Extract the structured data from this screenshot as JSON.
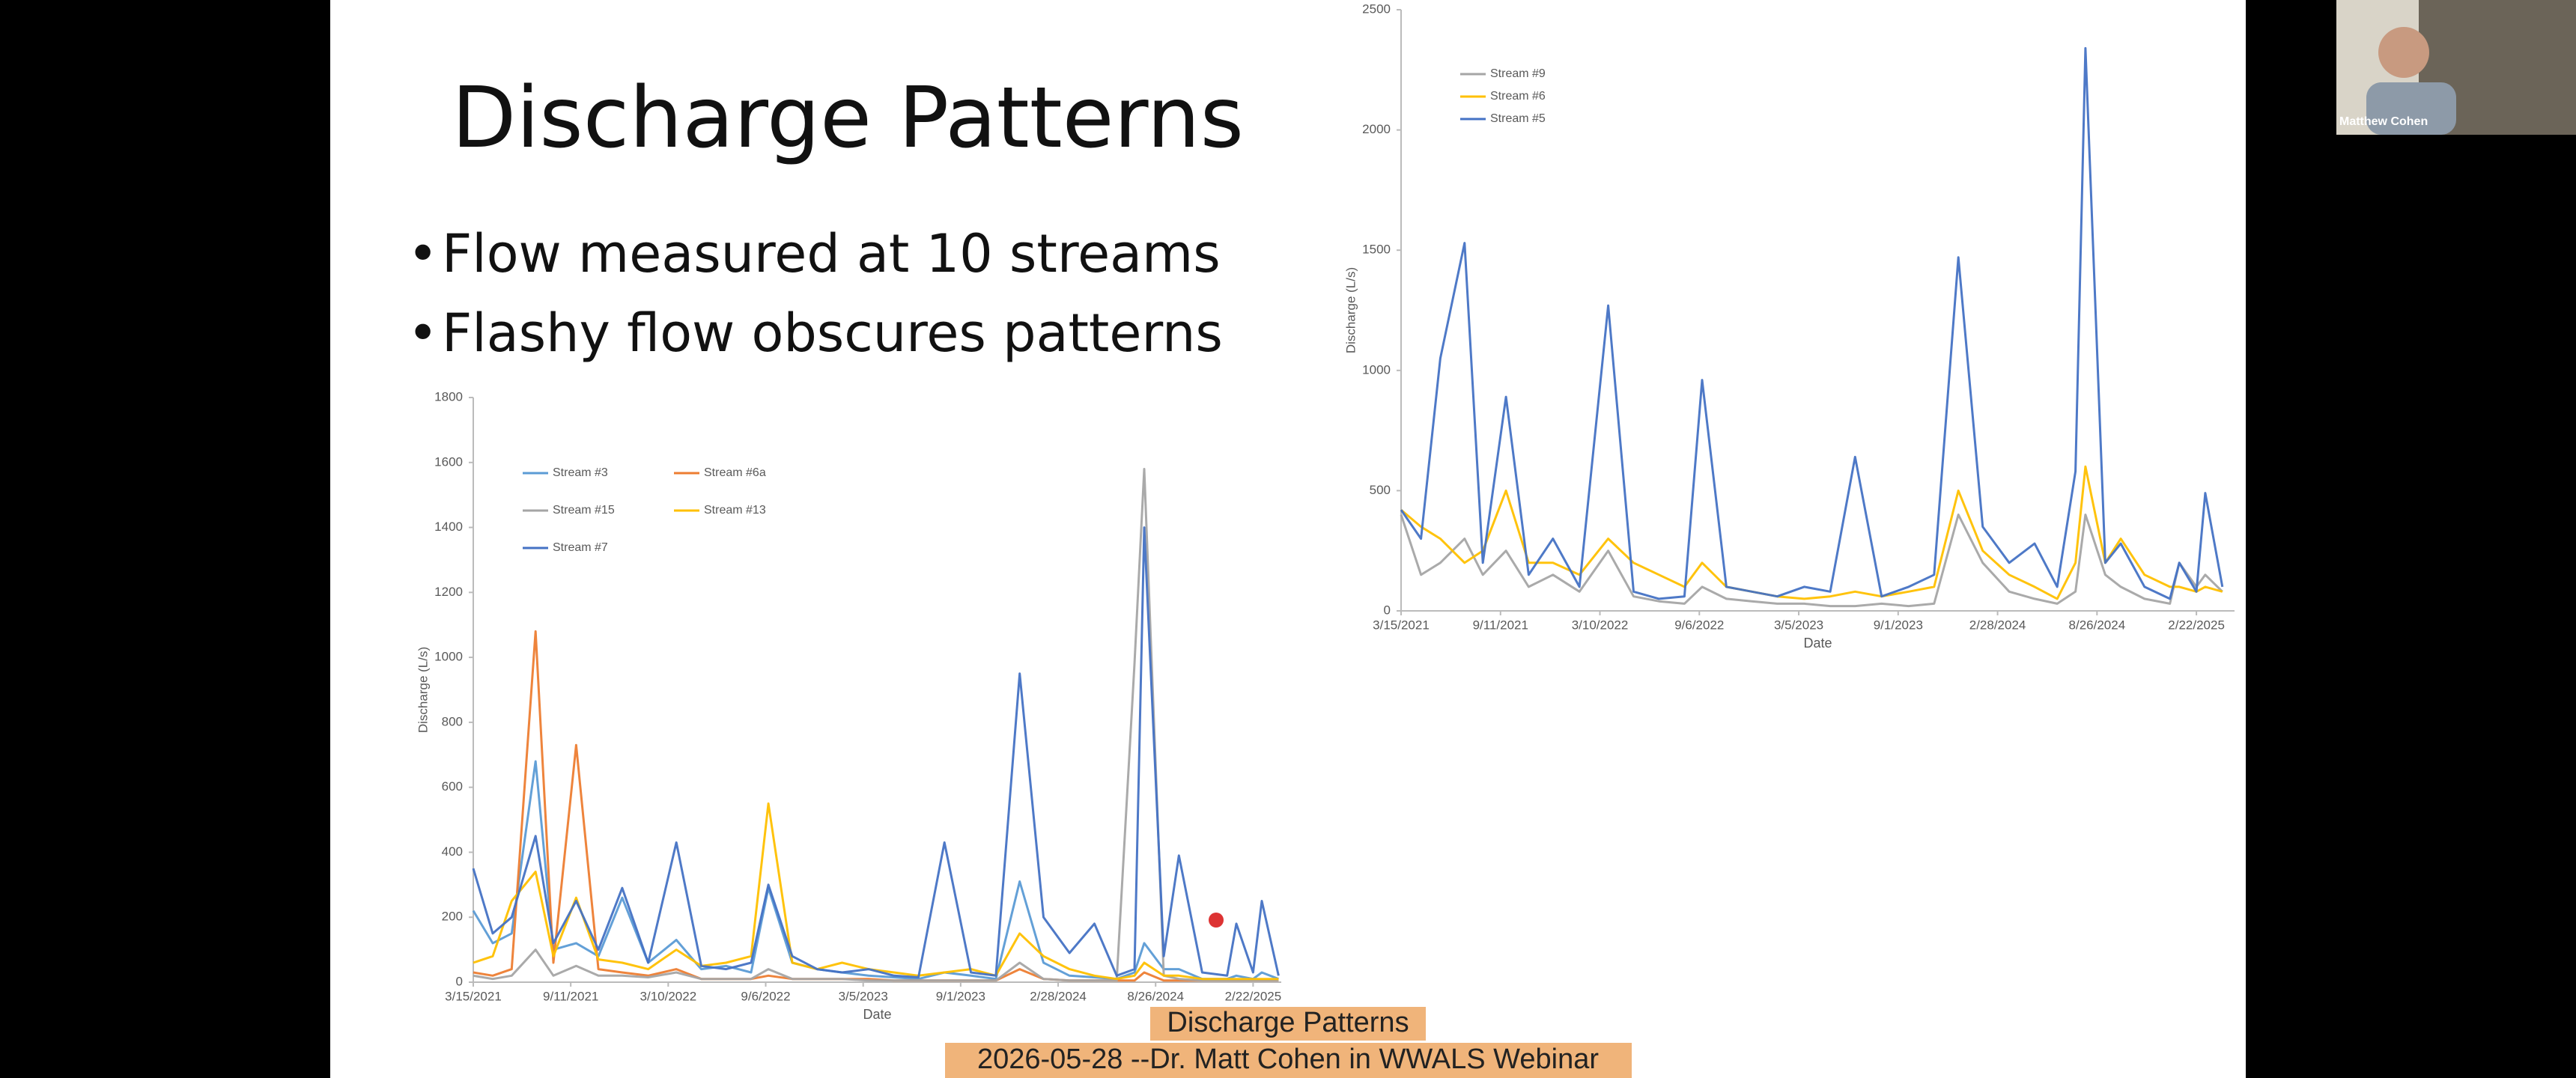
{
  "slide": {
    "title": "Discharge Patterns",
    "bullets": [
      "Flow measured at 10 streams",
      "Flashy flow obscures patterns"
    ]
  },
  "video": {
    "participant": "Matthew Cohen"
  },
  "captions": [
    "Discharge Patterns",
    "2026-05-28 --Dr. Matt Cohen in WWALS Webinar"
  ],
  "chart_data": [
    {
      "type": "line",
      "x_label": "Date",
      "y_label": "Discharge (L/s)",
      "x": [
        "3/15/2021",
        "4/20/2021",
        "5/25/2021",
        "7/8/2021",
        "8/10/2021",
        "9/21/2021",
        "11/1/2021",
        "12/15/2021",
        "2/1/2022",
        "3/25/2022",
        "5/10/2022",
        "6/25/2022",
        "8/10/2022",
        "9/11/2022",
        "10/25/2022",
        "12/10/2022",
        "1/25/2023",
        "3/15/2023",
        "5/1/2023",
        "6/15/2023",
        "8/2/2023",
        "9/20/2023",
        "11/5/2023",
        "12/19/2023",
        "2/1/2024",
        "3/20/2024",
        "5/5/2024",
        "6/15/2024",
        "7/18/2024",
        "8/5/2024",
        "9/10/2024",
        "10/8/2024",
        "11/20/2024",
        "1/5/2025",
        "1/22/2025",
        "2/22/2025",
        "3/10/2025",
        "4/10/2025"
      ],
      "xlim": [
        "3/15/2021",
        "4/15/2025"
      ],
      "xticks": [
        "3/15/2021",
        "9/11/2021",
        "3/10/2022",
        "9/6/2022",
        "3/5/2023",
        "9/1/2023",
        "2/28/2024",
        "8/26/2024",
        "2/22/2025"
      ],
      "ylim": [
        0,
        1800
      ],
      "yticks": [
        0,
        200,
        400,
        600,
        800,
        1000,
        1200,
        1400,
        1600,
        1800
      ],
      "series": [
        {
          "name": "Stream #3",
          "color": "#5b9bd5",
          "values": [
            220,
            120,
            150,
            680,
            100,
            120,
            80,
            260,
            60,
            130,
            40,
            50,
            30,
            290,
            60,
            40,
            30,
            20,
            15,
            10,
            30,
            20,
            10,
            310,
            60,
            20,
            15,
            10,
            30,
            120,
            40,
            40,
            10,
            10,
            20,
            10,
            30,
            10
          ]
        },
        {
          "name": "Stream #6a",
          "color": "#ed7d31",
          "values": [
            30,
            20,
            40,
            1080,
            60,
            730,
            40,
            30,
            20,
            40,
            10,
            10,
            10,
            20,
            10,
            10,
            10,
            10,
            5,
            5,
            5,
            5,
            5,
            40,
            10,
            5,
            5,
            5,
            5,
            30,
            5,
            5,
            5,
            5,
            5,
            5,
            5,
            5
          ]
        },
        {
          "name": "Stream #15",
          "color": "#a5a5a5",
          "values": [
            20,
            10,
            20,
            100,
            20,
            50,
            20,
            20,
            15,
            30,
            10,
            10,
            10,
            40,
            10,
            10,
            10,
            5,
            5,
            5,
            5,
            5,
            5,
            60,
            10,
            5,
            5,
            5,
            980,
            1580,
            20,
            10,
            5,
            5,
            5,
            5,
            5,
            5
          ]
        },
        {
          "name": "Stream #13",
          "color": "#ffc000",
          "values": [
            60,
            80,
            250,
            340,
            80,
            260,
            70,
            60,
            40,
            100,
            50,
            60,
            80,
            550,
            60,
            40,
            60,
            40,
            30,
            20,
            30,
            40,
            20,
            150,
            80,
            40,
            20,
            10,
            20,
            60,
            20,
            20,
            10,
            10,
            10,
            10,
            10,
            10
          ]
        },
        {
          "name": "Stream #7",
          "color": "#4472c4",
          "values": [
            350,
            150,
            200,
            450,
            120,
            250,
            100,
            290,
            60,
            430,
            50,
            40,
            60,
            300,
            80,
            40,
            30,
            40,
            20,
            15,
            430,
            30,
            20,
            950,
            200,
            90,
            180,
            20,
            40,
            1400,
            80,
            390,
            30,
            20,
            180,
            30,
            250,
            20
          ]
        }
      ]
    },
    {
      "type": "line",
      "x_label": "Date",
      "y_label": "Discharge (L/s)",
      "x": [
        "3/15/2021",
        "4/20/2021",
        "5/25/2021",
        "7/8/2021",
        "8/10/2021",
        "9/21/2021",
        "11/1/2021",
        "12/15/2021",
        "2/1/2022",
        "3/25/2022",
        "5/10/2022",
        "6/25/2022",
        "8/10/2022",
        "9/11/2022",
        "10/25/2022",
        "12/10/2022",
        "1/25/2023",
        "3/15/2023",
        "5/1/2023",
        "6/15/2023",
        "8/2/2023",
        "9/20/2023",
        "11/5/2023",
        "12/19/2023",
        "2/1/2024",
        "3/20/2024",
        "5/5/2024",
        "6/15/2024",
        "7/18/2024",
        "8/5/2024",
        "9/10/2024",
        "10/8/2024",
        "11/20/2024",
        "1/5/2025",
        "1/22/2025",
        "2/22/2025",
        "3/10/2025",
        "4/10/2025"
      ],
      "xlim": [
        "3/15/2021",
        "5/2/2025"
      ],
      "xticks": [
        "3/15/2021",
        "9/11/2021",
        "3/10/2022",
        "9/6/2022",
        "3/5/2023",
        "9/1/2023",
        "2/28/2024",
        "8/26/2024",
        "2/22/2025"
      ],
      "ylim": [
        0,
        2500
      ],
      "yticks": [
        0,
        500,
        1000,
        1500,
        2000,
        2500
      ],
      "series": [
        {
          "name": "Stream #9",
          "color": "#a5a5a5",
          "values": [
            400,
            150,
            200,
            300,
            150,
            250,
            100,
            150,
            80,
            250,
            60,
            40,
            30,
            100,
            50,
            40,
            30,
            30,
            20,
            20,
            30,
            20,
            30,
            400,
            200,
            80,
            50,
            30,
            80,
            400,
            150,
            100,
            50,
            30,
            200,
            100,
            150,
            80
          ]
        },
        {
          "name": "Stream #6",
          "color": "#ffc000",
          "values": [
            420,
            350,
            300,
            200,
            250,
            500,
            200,
            200,
            150,
            300,
            200,
            150,
            100,
            200,
            100,
            80,
            60,
            50,
            60,
            80,
            60,
            80,
            100,
            500,
            250,
            150,
            100,
            50,
            200,
            600,
            200,
            300,
            150,
            100,
            100,
            80,
            100,
            80
          ]
        },
        {
          "name": "Stream #5",
          "color": "#4472c4",
          "values": [
            420,
            300,
            1050,
            1530,
            200,
            890,
            150,
            300,
            100,
            1270,
            80,
            50,
            60,
            960,
            100,
            80,
            60,
            100,
            80,
            640,
            60,
            100,
            150,
            1470,
            350,
            200,
            280,
            100,
            580,
            2340,
            200,
            280,
            100,
            50,
            200,
            80,
            490,
            100
          ]
        }
      ]
    }
  ]
}
